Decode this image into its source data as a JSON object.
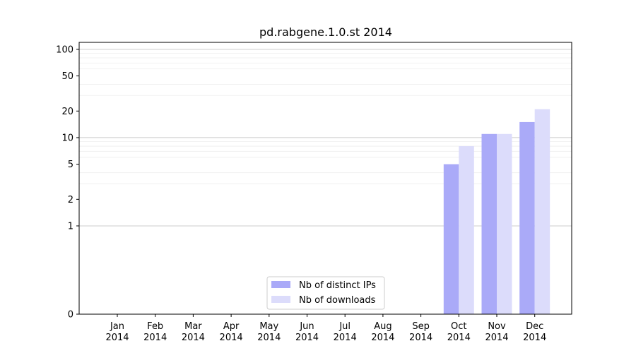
{
  "chart_data": {
    "type": "bar",
    "title": "pd.rabgene.1.0.st 2014",
    "categories": [
      [
        "Jan",
        "2014"
      ],
      [
        "Feb",
        "2014"
      ],
      [
        "Mar",
        "2014"
      ],
      [
        "Apr",
        "2014"
      ],
      [
        "May",
        "2014"
      ],
      [
        "Jun",
        "2014"
      ],
      [
        "Jul",
        "2014"
      ],
      [
        "Aug",
        "2014"
      ],
      [
        "Sep",
        "2014"
      ],
      [
        "Oct",
        "2014"
      ],
      [
        "Nov",
        "2014"
      ],
      [
        "Dec",
        "2014"
      ]
    ],
    "series": [
      {
        "name": "Nb of distinct IPs",
        "color": "#aaaaf8",
        "values": [
          0,
          0,
          0,
          0,
          0,
          0,
          0,
          0,
          0,
          5,
          11,
          15
        ]
      },
      {
        "name": "Nb of downloads",
        "color": "#dcdcfb",
        "values": [
          0,
          0,
          0,
          0,
          0,
          0,
          0,
          0,
          0,
          8,
          11,
          21
        ]
      }
    ],
    "yscale": "symlog",
    "ylim": [
      0,
      120
    ],
    "yticks": [
      0,
      1,
      2,
      5,
      10,
      20,
      50,
      100
    ],
    "grid": true,
    "legend_position": "lower center"
  }
}
